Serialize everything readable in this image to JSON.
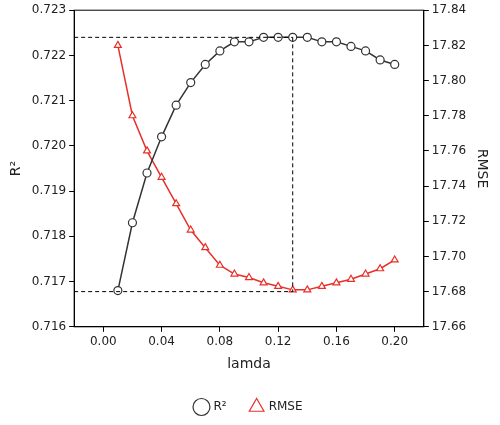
{
  "chart_data": {
    "type": "line",
    "x_label": "lamda",
    "y_label": "R²",
    "y2_label": "RMSE",
    "x": [
      0.01,
      0.02,
      0.03,
      0.04,
      0.05,
      0.06,
      0.07,
      0.08,
      0.09,
      0.1,
      0.11,
      0.12,
      0.13,
      0.14,
      0.15,
      0.16,
      0.17,
      0.18,
      0.19,
      0.2
    ],
    "series": [
      {
        "name": "R²",
        "color": "#333333",
        "marker": "circle",
        "values": [
          0.7168,
          0.7183,
          0.7194,
          0.7202,
          0.7209,
          0.7214,
          0.7218,
          0.7221,
          0.7223,
          0.7223,
          0.7224,
          0.7224,
          0.7224,
          0.7224,
          0.7223,
          0.7223,
          0.7222,
          0.7221,
          0.7219,
          0.7218
        ]
      },
      {
        "name": "RMSE",
        "color": "#e8302a",
        "marker": "triangle",
        "axis": "y2",
        "values": [
          17.82,
          17.78,
          17.76,
          17.745,
          17.73,
          17.715,
          17.705,
          17.695,
          17.69,
          17.688,
          17.685,
          17.683,
          17.681,
          17.681,
          17.683,
          17.685,
          17.687,
          17.69,
          17.693,
          17.698
        ]
      }
    ],
    "xlim": [
      -0.02,
      0.22
    ],
    "xticks": [
      {
        "value": 0,
        "label": "0.00"
      },
      {
        "value": 0.04,
        "label": "0.04"
      },
      {
        "value": 0.08,
        "label": "0.08"
      },
      {
        "value": 0.12,
        "label": "0.12"
      },
      {
        "value": 0.16,
        "label": "0.16"
      },
      {
        "value": 0.2,
        "label": "0.20"
      }
    ],
    "ylim": [
      0.716,
      0.723
    ],
    "yticks": [
      0.716,
      0.717,
      0.718,
      0.719,
      {
        "value": 0.72,
        "label": "0.720"
      },
      0.721,
      0.722,
      0.723
    ],
    "y2lim": [
      17.66,
      17.84
    ],
    "y2ticks": [
      17.66,
      17.68,
      {
        "value": 17.7,
        "label": "17.70"
      },
      17.72,
      17.74,
      17.76,
      17.78,
      {
        "value": 17.8,
        "label": "17.80"
      },
      17.82,
      17.84
    ],
    "grid": false,
    "legend": "bottom",
    "guides": {
      "x": 0.13,
      "y": 0.7224,
      "y2": 17.68
    }
  }
}
